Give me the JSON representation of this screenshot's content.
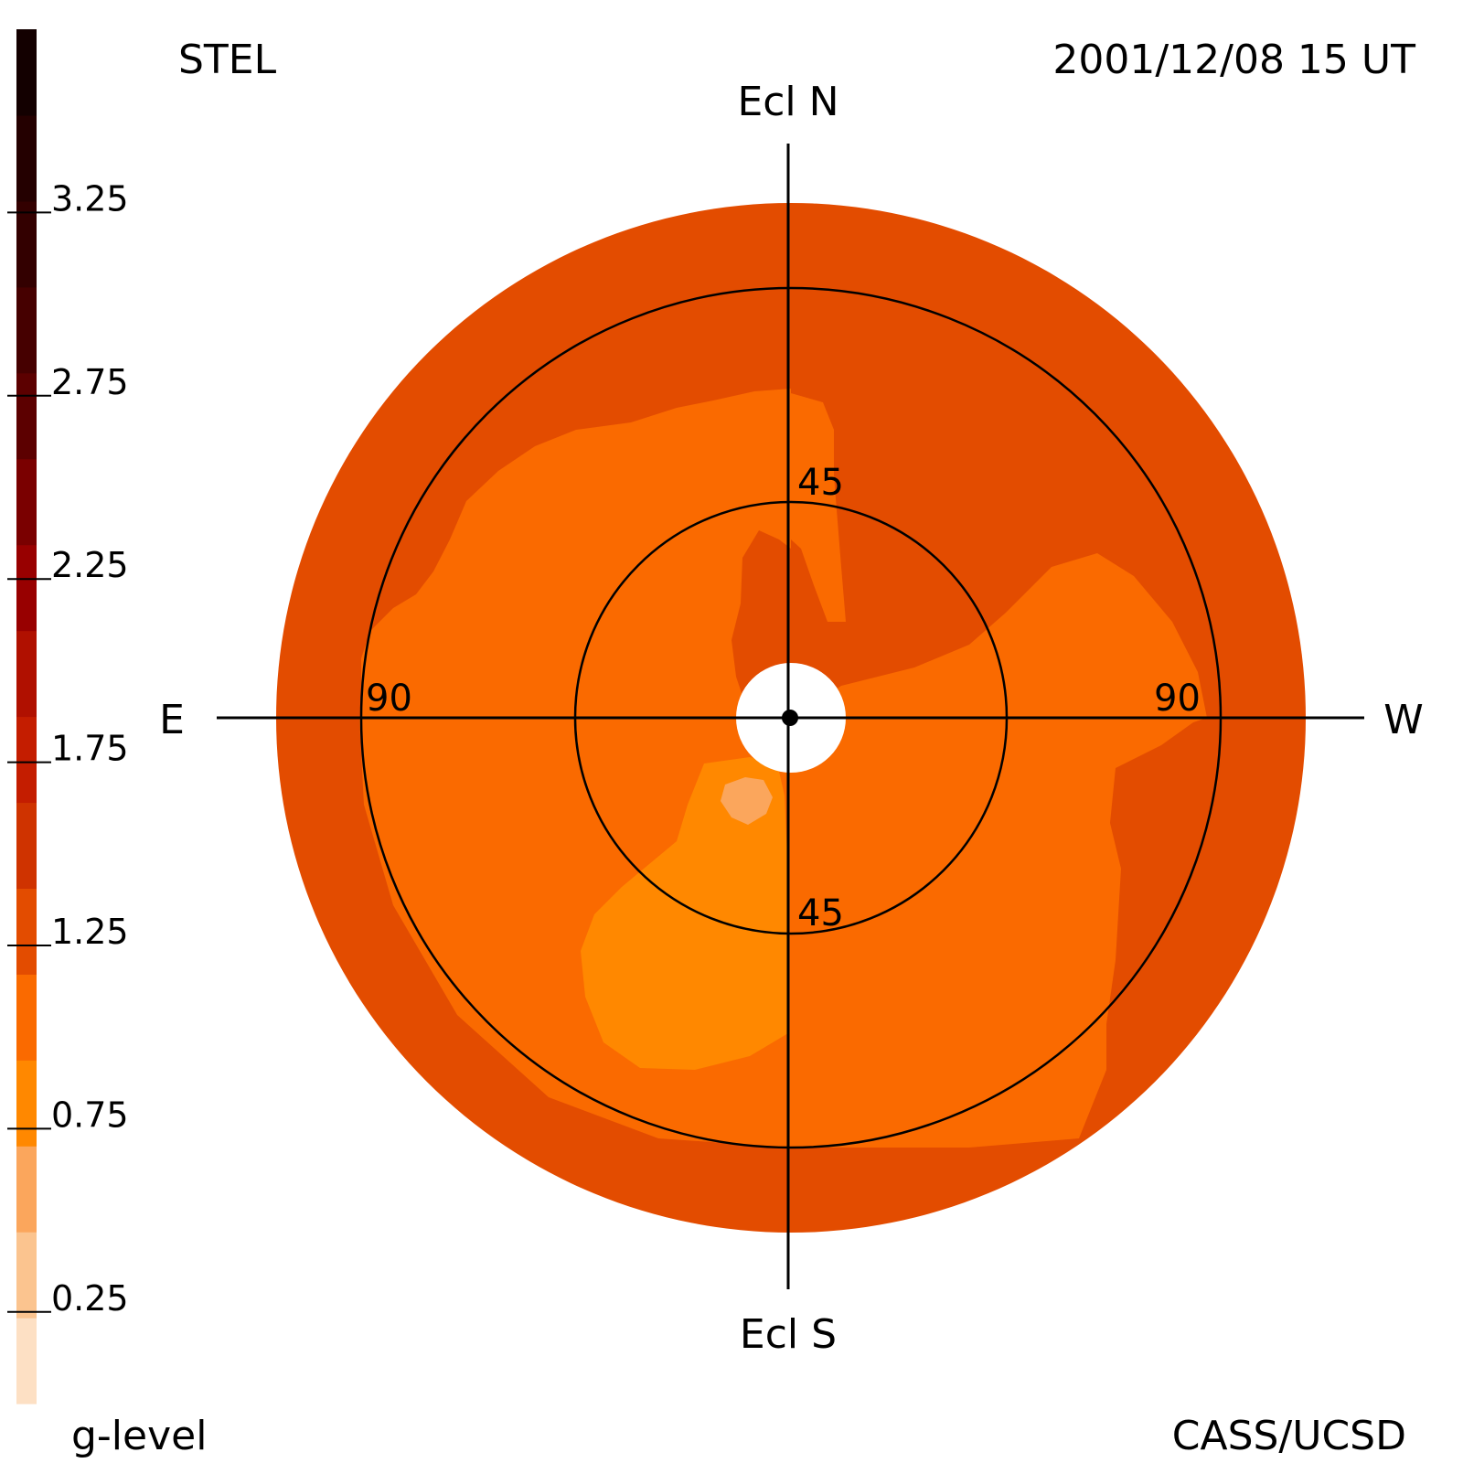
{
  "header": {
    "instrument": "STEL",
    "timestamp": "2001/12/08 15 UT"
  },
  "footer": {
    "colorbar_label": "g-level",
    "credit": "CASS/UCSD"
  },
  "directions": {
    "north": "Ecl N",
    "south": "Ecl S",
    "east": "E",
    "west": "W"
  },
  "ring_labels": {
    "inner_north": "45",
    "inner_south": "45",
    "outer_east": "90",
    "outer_west": "90"
  },
  "colorbar": {
    "ticks": [
      "3.25",
      "2.75",
      "2.25",
      "1.75",
      "1.25",
      "0.75",
      "0.25"
    ],
    "tick_values": [
      3.25,
      2.75,
      2.25,
      1.75,
      1.25,
      0.75,
      0.25
    ],
    "range": [
      0,
      3.75
    ],
    "colors": [
      "#fde0c4",
      "#fbc48f",
      "#fba65c",
      "#ff8800",
      "#fa6a00",
      "#e34c00",
      "#cf3300",
      "#c41d00",
      "#b01000",
      "#980000",
      "#7a0000",
      "#5c0000",
      "#460000",
      "#330000",
      "#240000",
      "#130000"
    ]
  },
  "chart_data": {
    "type": "heatmap",
    "projection": "polar sky map (elongation from Sun)",
    "title": "STEL",
    "subtitle": "2001/12/08 15 UT",
    "colorbar_label": "g-level",
    "colorbar_range": [
      0,
      3.75
    ],
    "elongation_rings_deg": [
      45,
      90
    ],
    "regions": [
      {
        "area": "outer annulus (all around)",
        "g_level": 1.1
      },
      {
        "area": "upper-right sector",
        "g_level": 1.1
      },
      {
        "area": "right lobe inside 90 ring",
        "g_level": 0.9
      },
      {
        "area": "left / north-west interior",
        "g_level": 0.9
      },
      {
        "area": "south interior near center",
        "g_level": 0.6
      },
      {
        "area": "small spot just south of center",
        "g_level": 0.4
      }
    ]
  }
}
